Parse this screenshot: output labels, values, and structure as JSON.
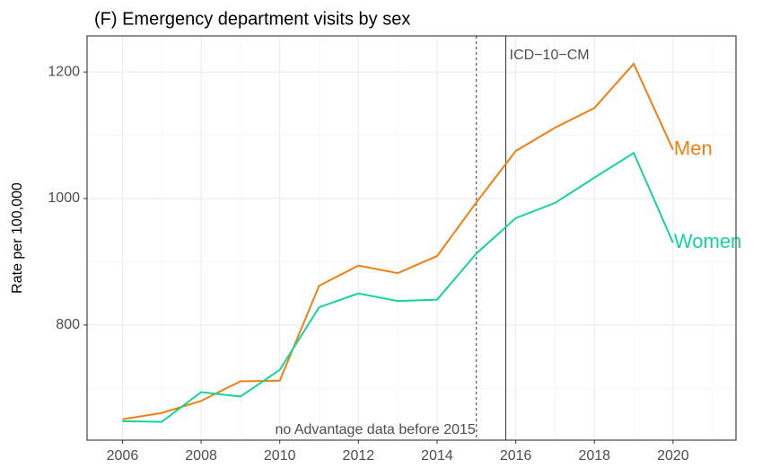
{
  "chart_data": {
    "type": "line",
    "title": "(F) Emergency department visits by sex",
    "y_label": "Rate per 100,000",
    "x": [
      2006,
      2007,
      2008,
      2009,
      2010,
      2011,
      2012,
      2013,
      2014,
      2015,
      2016,
      2017,
      2018,
      2019,
      2020
    ],
    "series": [
      {
        "name": "Men",
        "color": "#f07f0f",
        "values": [
          651,
          661,
          680,
          711,
          712,
          862,
          894,
          882,
          909,
          994,
          1075,
          1112,
          1143,
          1213,
          1077
        ]
      },
      {
        "name": "Women",
        "color": "#14d49c",
        "values": [
          648,
          647,
          694,
          687,
          729,
          828,
          850,
          838,
          840,
          913,
          969,
          993,
          1033,
          1072,
          930
        ]
      }
    ],
    "xlim": [
      2005.1,
      2021.6
    ],
    "ylim": [
      618,
      1257
    ],
    "xticks": [
      2006,
      2008,
      2010,
      2012,
      2014,
      2016,
      2018,
      2020
    ],
    "yticks": [
      800,
      1000,
      1200
    ],
    "grid": true,
    "minor_grid": true,
    "vlines": [
      {
        "x": 2015,
        "style": "dashed",
        "label": "no Advantage data before 2015"
      },
      {
        "x": 2015.75,
        "style": "solid",
        "label": "ICD−10−CM"
      }
    ]
  }
}
